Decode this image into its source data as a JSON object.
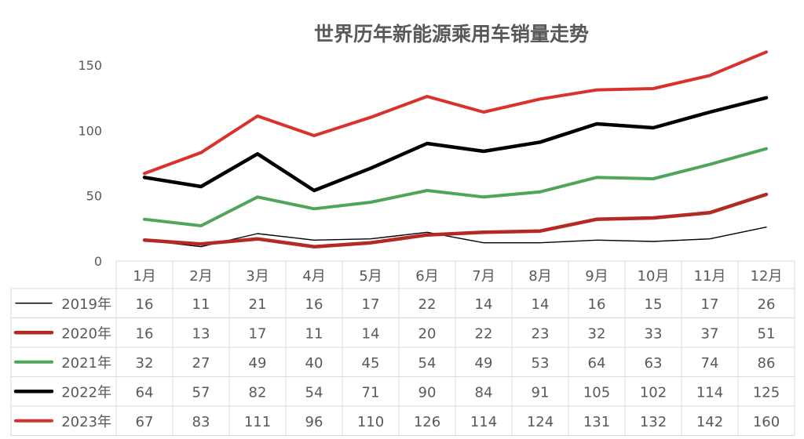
{
  "chart_data": {
    "type": "line",
    "title": "世界历年新能源乘用车销量走势",
    "categories": [
      "1月",
      "2月",
      "3月",
      "4月",
      "5月",
      "6月",
      "7月",
      "8月",
      "9月",
      "10月",
      "11月",
      "12月"
    ],
    "ylim": [
      0,
      150
    ],
    "yticks": [
      0,
      50,
      100,
      150
    ],
    "grid": false,
    "legend": "data-table",
    "series": [
      {
        "name": "2019年",
        "color": "#000000",
        "values": [
          16,
          11,
          21,
          16,
          17,
          22,
          14,
          14,
          16,
          15,
          17,
          26
        ]
      },
      {
        "name": "2020年",
        "color": "#b22a22",
        "values": [
          16,
          13,
          17,
          11,
          14,
          20,
          22,
          23,
          32,
          33,
          37,
          51
        ]
      },
      {
        "name": "2021年",
        "color": "#4ea65a",
        "values": [
          32,
          27,
          49,
          40,
          45,
          54,
          49,
          53,
          64,
          63,
          74,
          86
        ]
      },
      {
        "name": "2022年",
        "color": "#000000",
        "values": [
          64,
          57,
          82,
          54,
          71,
          90,
          84,
          91,
          105,
          102,
          114,
          125
        ]
      },
      {
        "name": "2023年",
        "color": "#d9312b",
        "values": [
          67,
          83,
          111,
          96,
          110,
          126,
          114,
          124,
          131,
          132,
          142,
          160
        ]
      }
    ]
  }
}
